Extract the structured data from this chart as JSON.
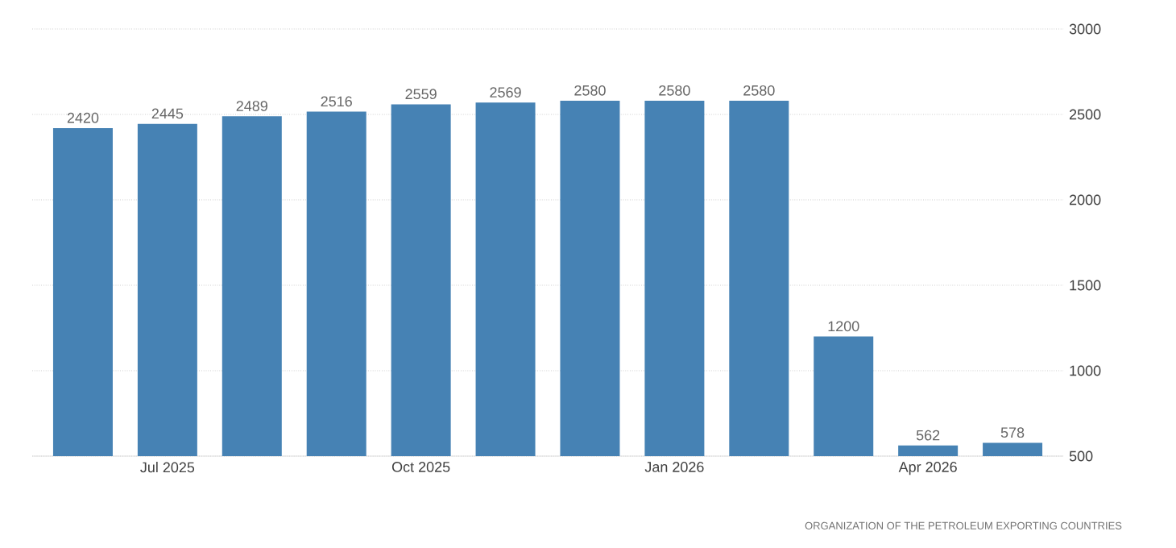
{
  "chart_data": {
    "type": "bar",
    "categories": [
      null,
      "Jul 2025",
      null,
      null,
      "Oct 2025",
      null,
      null,
      "Jan 2026",
      null,
      null,
      "Apr 2026",
      null
    ],
    "values": [
      2420,
      2445,
      2489,
      2516,
      2559,
      2569,
      2580,
      2580,
      2580,
      1200,
      562,
      578
    ],
    "color": "#4682b4",
    "ylim": [
      500,
      3000
    ],
    "yticks": [
      500,
      1000,
      1500,
      2000,
      2500,
      3000
    ],
    "grid": "y",
    "data_labels": true,
    "annotations": [
      "ORGANIZATION OF THE PETROLEUM EXPORTING COUNTRIES"
    ]
  }
}
